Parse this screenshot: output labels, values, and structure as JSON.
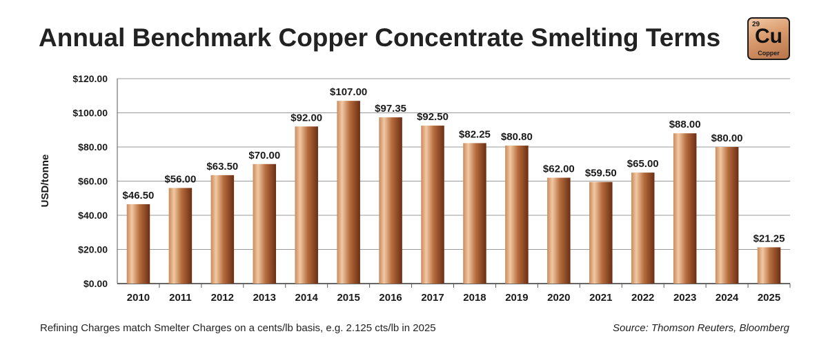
{
  "header": {
    "title": "Annual Benchmark Copper Concentrate Smelting Terms"
  },
  "element_badge": {
    "number": "29",
    "symbol": "Cu",
    "name": "Copper"
  },
  "chart_data": {
    "type": "bar",
    "title": "Annual Benchmark Copper Concentrate Smelting Terms",
    "xlabel": "",
    "ylabel": "USD/tonne",
    "ylim": [
      0,
      120
    ],
    "yticks": [
      "$0.00",
      "$20.00",
      "$40.00",
      "$60.00",
      "$80.00",
      "$100.00",
      "$120.00"
    ],
    "categories": [
      "2010",
      "2011",
      "2012",
      "2013",
      "2014",
      "2015",
      "2016",
      "2017",
      "2018",
      "2019",
      "2020",
      "2021",
      "2022",
      "2023",
      "2024",
      "2025"
    ],
    "values": [
      46.5,
      56.0,
      63.5,
      70.0,
      92.0,
      107.0,
      97.35,
      92.5,
      82.25,
      80.8,
      62.0,
      59.5,
      65.0,
      88.0,
      80.0,
      21.25
    ],
    "data_labels": [
      "$46.50",
      "$56.00",
      "$63.50",
      "$70.00",
      "$92.00",
      "$107.00",
      "$97.35",
      "$92.50",
      "$82.25",
      "$80.80",
      "$62.00",
      "$59.50",
      "$65.00",
      "$88.00",
      "$80.00",
      "$21.25"
    ],
    "grid": true,
    "legend": "none",
    "bar_colors": {
      "light": "#f1c9a3",
      "mid": "#b66c3c",
      "dark": "#6b2e14"
    }
  },
  "footer": {
    "note": "Refining Charges match Smelter Charges on a cents/lb basis, e.g. 2.125 cts/lb in 2025",
    "source": "Source: Thomson Reuters, Bloomberg"
  }
}
